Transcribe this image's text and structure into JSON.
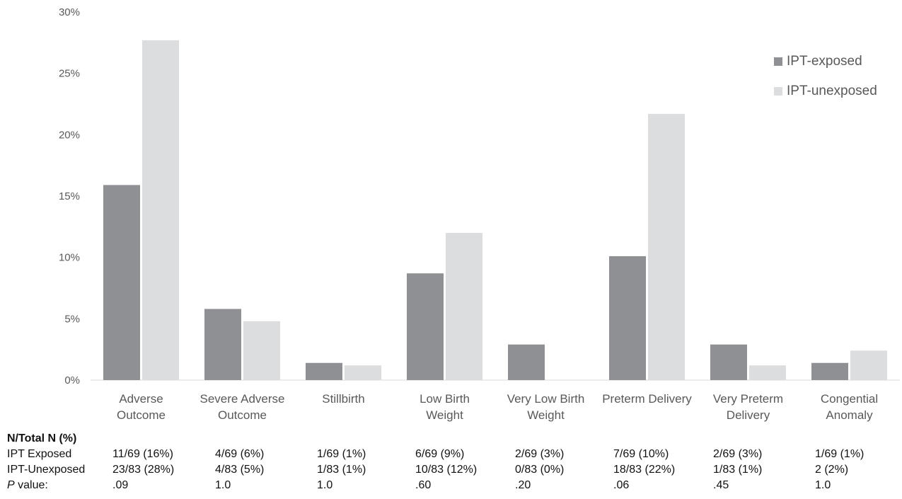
{
  "chart_data": {
    "type": "bar",
    "categories": [
      [
        "Adverse",
        "Outcome"
      ],
      [
        "Severe Adverse",
        "Outcome"
      ],
      [
        "Stillbirth"
      ],
      [
        "Low Birth",
        "Weight"
      ],
      [
        "Very Low Birth",
        "Weight"
      ],
      [
        "Preterm Delivery"
      ],
      [
        "Very Preterm",
        "Delivery"
      ],
      [
        "Congential",
        "Anomaly"
      ]
    ],
    "series": [
      {
        "name": "IPT-exposed",
        "color": "#8f9094",
        "values": [
          15.9,
          5.8,
          1.4,
          8.7,
          2.9,
          10.1,
          2.9,
          1.4
        ]
      },
      {
        "name": "IPT-unexposed",
        "color": "#dcdddf",
        "values": [
          27.7,
          4.8,
          1.2,
          12.0,
          0,
          21.7,
          1.2,
          2.4
        ]
      }
    ],
    "yticks": [
      "0%",
      "5%",
      "10%",
      "15%",
      "20%",
      "25%",
      "30%"
    ],
    "ylim": [
      0,
      30
    ],
    "legend_position": "top-right"
  },
  "table": {
    "title": "N/Total N (%)",
    "rows": [
      {
        "label": "IPT Exposed",
        "cells": [
          "11/69 (16%)",
          "4/69 (6%)",
          "1/69 (1%)",
          "6/69 (9%)",
          "2/69 (3%)",
          "7/69 (10%)",
          "2/69 (3%)",
          "1/69 (1%)"
        ]
      },
      {
        "label": "IPT-Unexposed",
        "cells": [
          "23/83 (28%)",
          "4/83 (5%)",
          "1/83 (1%)",
          "10/83 (12%)",
          "0/83 (0%)",
          "18/83 (22%)",
          "1/83 (1%)",
          "2 (2%)"
        ]
      }
    ],
    "pvalue_label_italic": "P",
    "pvalue_label_rest": " value:",
    "pvalues": [
      ".09",
      "1.0",
      "1.0",
      ".60",
      ".20",
      ".06",
      ".45",
      "1.0"
    ]
  }
}
